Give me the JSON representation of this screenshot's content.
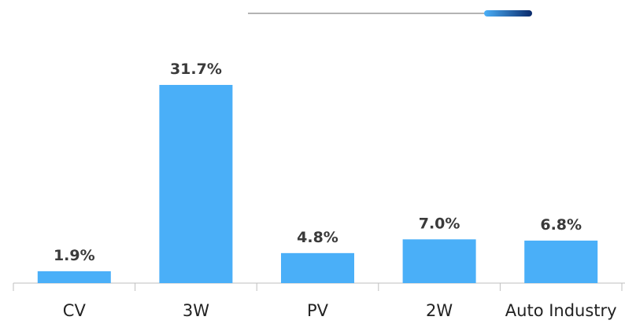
{
  "chart_data": {
    "type": "bar",
    "categories": [
      "CV",
      "3W",
      "PV",
      "2W",
      "Auto Industry"
    ],
    "values": [
      1.9,
      31.7,
      4.8,
      7.0,
      6.8
    ],
    "value_labels": [
      "1.9%",
      "31.7%",
      "4.8%",
      "7.0%",
      "6.8%"
    ],
    "color": "#4aaff8"
  }
}
